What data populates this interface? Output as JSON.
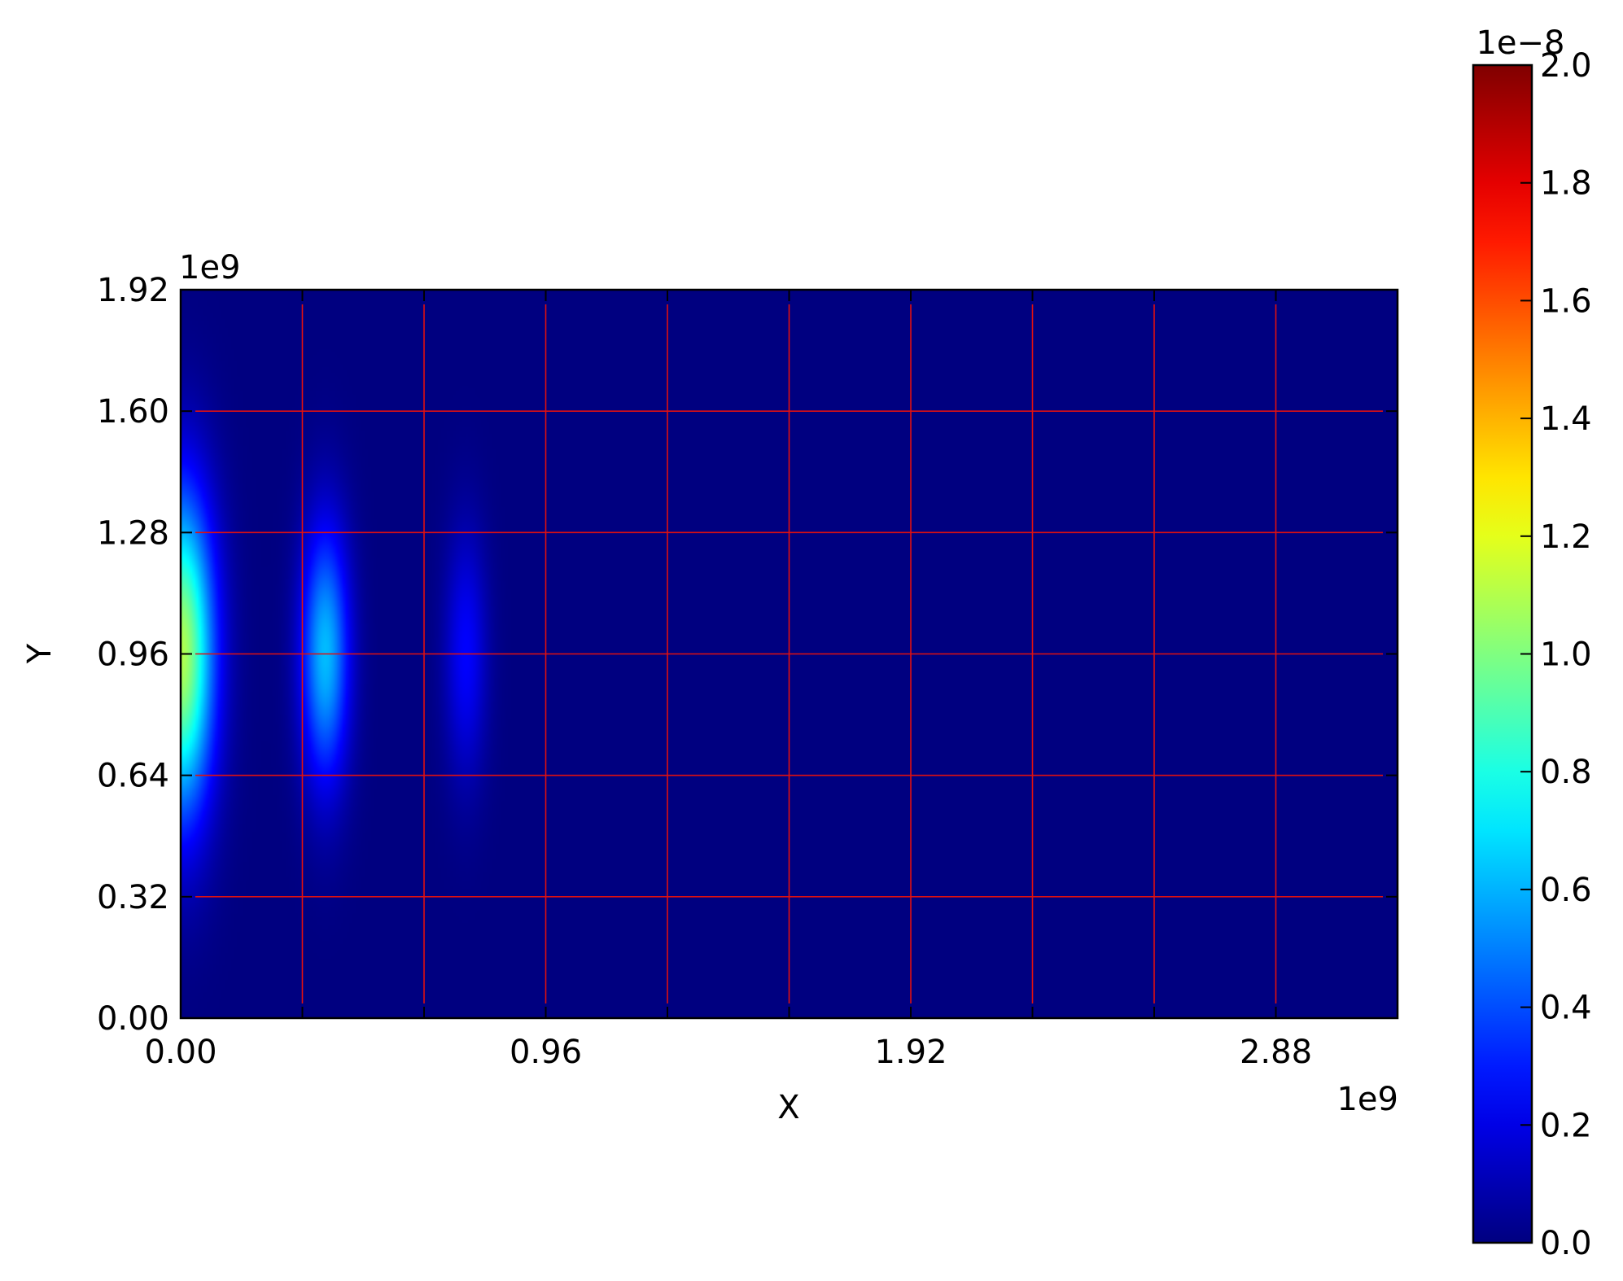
{
  "chart_data": {
    "type": "heatmap",
    "title": "",
    "xlabel": "X",
    "ylabel": "Y",
    "xlim": [
      0,
      3200000000.0
    ],
    "ylim": [
      0,
      1920000000.0
    ],
    "x_offset_text": "1e9",
    "y_offset_text": "1e9",
    "x_tick_labels": [
      "0.00",
      "0.96",
      "1.92",
      "2.88"
    ],
    "x_ticks": [
      0,
      960000000.0,
      1920000000.0,
      2880000000.0
    ],
    "y_tick_labels": [
      "0.00",
      "0.32",
      "0.64",
      "0.96",
      "1.28",
      "1.60",
      "1.92"
    ],
    "y_ticks": [
      0,
      320000000.0,
      640000000.0,
      960000000.0,
      1280000000.0,
      1600000000.0,
      1920000000.0
    ],
    "grid": true,
    "grid_color": "#e01010",
    "grid_x": [
      320000000.0,
      640000000.0,
      960000000.0,
      1280000000.0,
      1600000000.0,
      1920000000.0,
      2240000000.0,
      2560000000.0,
      2880000000.0
    ],
    "grid_y": [
      320000000.0,
      640000000.0,
      960000000.0,
      1280000000.0,
      1600000000.0
    ],
    "colormap": "jet",
    "colorbar": {
      "range": [
        0,
        2e-08
      ],
      "offset_text": "1e−8",
      "tick_labels": [
        "0.0",
        "0.2",
        "0.4",
        "0.6",
        "0.8",
        "1.0",
        "1.2",
        "1.4",
        "1.6",
        "1.8",
        "2.0"
      ],
      "ticks": [
        0,
        2e-09,
        4e-09,
        6e-09,
        8e-09,
        1e-08,
        1.2e-08,
        1.4e-08,
        1.6e-08,
        1.8e-08,
        2e-08
      ]
    },
    "features": [
      {
        "x_center": 0.0,
        "y_center": 960000000.0,
        "x_halfwidth": 110000000.0,
        "y_halfwidth": 620000000.0,
        "peak": 1.1e-08
      },
      {
        "x_center": 380000000.0,
        "y_center": 960000000.0,
        "x_halfwidth": 80000000.0,
        "y_halfwidth": 500000000.0,
        "peak": 6.2e-09
      },
      {
        "x_center": 750000000.0,
        "y_center": 960000000.0,
        "x_halfwidth": 70000000.0,
        "y_halfwidth": 480000000.0,
        "peak": 2.5e-09
      }
    ]
  }
}
